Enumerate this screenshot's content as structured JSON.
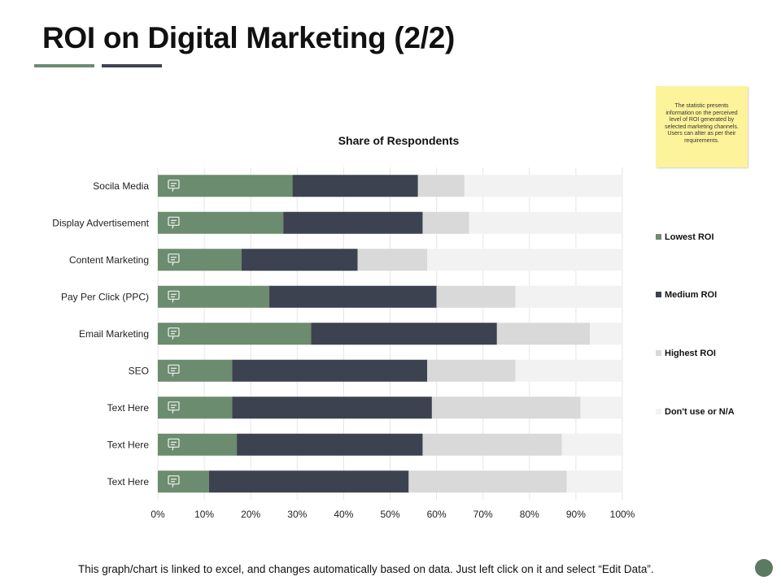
{
  "page": {
    "title": "ROI on Digital Marketing (2/2)",
    "note": "The statistic presents information on the perceived level of ROI generated by selected marketing channels. Users can alter as per their requirements.",
    "footer": "This graph/chart is linked to excel, and changes automatically based on data.  Just left click on it and select “Edit Data”."
  },
  "colors": {
    "accent_green": "#6b8c6e",
    "accent_dark": "#3d4250",
    "note_bg": "#fdf39a"
  },
  "chart_data": {
    "type": "bar",
    "orientation": "horizontal",
    "stacked": true,
    "title": "Share of Respondents",
    "categories": [
      "Socila Media",
      "Display Advertisement",
      "Content Marketing",
      "Pay Per Click (PPC)",
      "Email Marketing",
      "SEO",
      "Text Here",
      "Text Here",
      "Text Here"
    ],
    "category_icons": [
      "social-media-icon",
      "display-ad-icon",
      "content-icon",
      "ppc-monitor-icon",
      "email-icon",
      "seo-magnifier-icon",
      "growth-chart-icon",
      "document-icon",
      "settings-doc-icon"
    ],
    "series": [
      {
        "name": "Lowest ROI",
        "color": "#6b8c6e",
        "values": [
          29,
          27,
          18,
          24,
          33,
          16,
          16,
          17,
          11
        ]
      },
      {
        "name": "Medium ROI",
        "color": "#3d4250",
        "values": [
          27,
          30,
          25,
          36,
          40,
          42,
          43,
          40,
          43
        ]
      },
      {
        "name": "Highest ROI",
        "color": "#d9d9d9",
        "values": [
          10,
          10,
          15,
          17,
          20,
          19,
          32,
          30,
          34
        ]
      },
      {
        "name": "Don't use or N/A",
        "color": "#f2f2f2",
        "values": [
          34,
          33,
          42,
          23,
          7,
          23,
          9,
          13,
          12
        ]
      }
    ],
    "xlim": [
      0,
      100
    ],
    "xticks": [
      "0%",
      "10%",
      "20%",
      "30%",
      "40%",
      "50%",
      "60%",
      "70%",
      "80%",
      "90%",
      "100%"
    ],
    "grid": true,
    "legend_position": "right"
  }
}
